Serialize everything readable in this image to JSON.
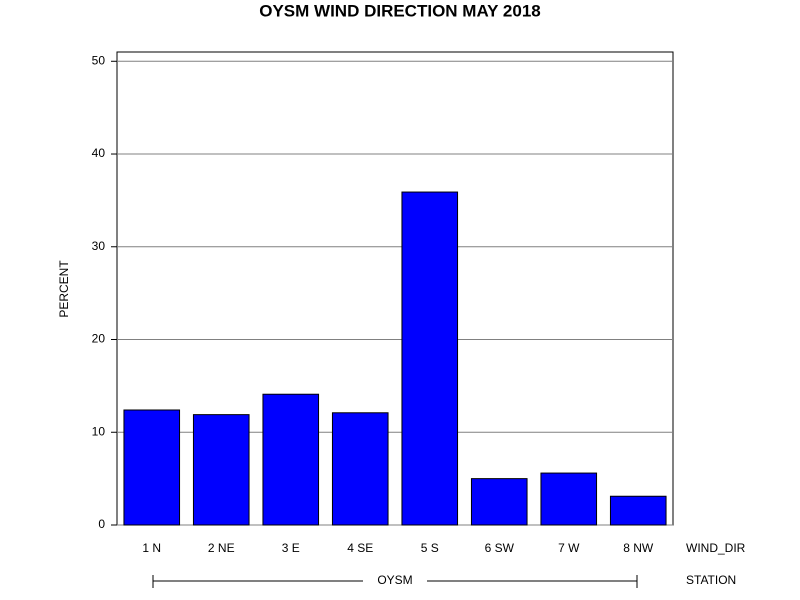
{
  "chart_data": {
    "type": "bar",
    "title": "OYSM WIND DIRECTION MAY 2018",
    "y_label": "PERCENT",
    "x_label": "WIND_DIR",
    "group_label": "STATION",
    "group": "OYSM",
    "categories": [
      "1 N",
      "2 NE",
      "3 E",
      "4 SE",
      "5 S",
      "6 SW",
      "7 W",
      "8 NW"
    ],
    "values": [
      12.4,
      11.9,
      14.1,
      12.1,
      35.9,
      5.0,
      5.6,
      3.1
    ],
    "color": "#0000ff",
    "ylim": [
      0,
      51
    ],
    "yticks": [
      0,
      10,
      20,
      30,
      40,
      50
    ],
    "grid": true
  }
}
